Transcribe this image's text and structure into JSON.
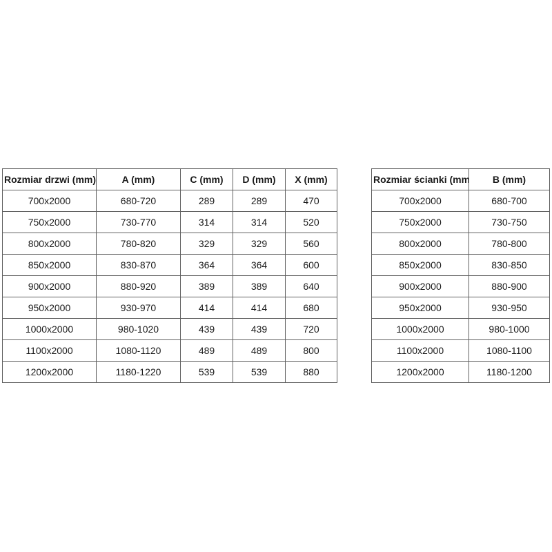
{
  "colors": {
    "background": "#ffffff",
    "table_border": "#5f5f5f",
    "text": "#1a1a1a"
  },
  "tables": [
    {
      "id": "doors",
      "headers": [
        "Rozmiar drzwi (mm)",
        "A (mm)",
        "C (mm)",
        "D (mm)",
        "X (mm)"
      ],
      "rows": [
        [
          "700x2000",
          "680-720",
          "289",
          "289",
          "470"
        ],
        [
          "750x2000",
          "730-770",
          "314",
          "314",
          "520"
        ],
        [
          "800x2000",
          "780-820",
          "329",
          "329",
          "560"
        ],
        [
          "850x2000",
          "830-870",
          "364",
          "364",
          "600"
        ],
        [
          "900x2000",
          "880-920",
          "389",
          "389",
          "640"
        ],
        [
          "950x2000",
          "930-970",
          "414",
          "414",
          "680"
        ],
        [
          "1000x2000",
          "980-1020",
          "439",
          "439",
          "720"
        ],
        [
          "1100x2000",
          "1080-1120",
          "489",
          "489",
          "800"
        ],
        [
          "1200x2000",
          "1180-1220",
          "539",
          "539",
          "880"
        ]
      ]
    },
    {
      "id": "walls",
      "headers": [
        "Rozmiar ścianki (mm)",
        "B (mm)"
      ],
      "rows": [
        [
          "700x2000",
          "680-700"
        ],
        [
          "750x2000",
          "730-750"
        ],
        [
          "800x2000",
          "780-800"
        ],
        [
          "850x2000",
          "830-850"
        ],
        [
          "900x2000",
          "880-900"
        ],
        [
          "950x2000",
          "930-950"
        ],
        [
          "1000x2000",
          "980-1000"
        ],
        [
          "1100x2000",
          "1080-1100"
        ],
        [
          "1200x2000",
          "1180-1200"
        ]
      ]
    }
  ]
}
